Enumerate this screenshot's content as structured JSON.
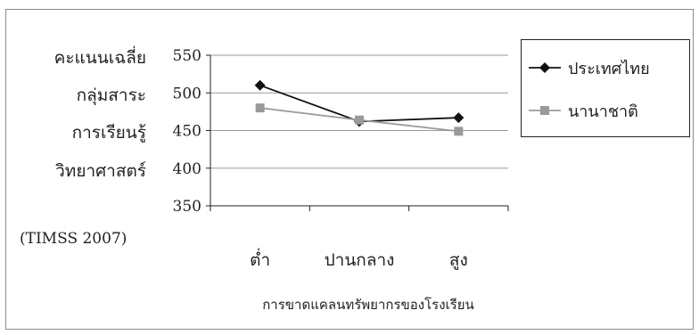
{
  "chart_data": {
    "type": "line",
    "ylabel_lines": [
      "คะแนนเฉลี่ย",
      "กลุ่มสาระ",
      "การเรียนรู้",
      "วิทยาศาสตร์"
    ],
    "note": "(TIMSS 2007)",
    "xlabel": "การขาดแคลนทรัพยากรของโรงเรียน",
    "categories": [
      "ต่ำ",
      "ปานกลาง",
      "สูง"
    ],
    "ylim": [
      350,
      550
    ],
    "yticks": [
      550,
      500,
      450,
      400,
      350
    ],
    "grid": true,
    "legend_position": "right",
    "series": [
      {
        "name": "ประเทศไทย",
        "values": [
          510,
          462,
          467
        ],
        "color": "#111111",
        "marker": "diamond"
      },
      {
        "name": "นานาชาติ",
        "values": [
          480,
          464,
          449
        ],
        "color": "#9a9a9a",
        "marker": "square"
      }
    ]
  }
}
